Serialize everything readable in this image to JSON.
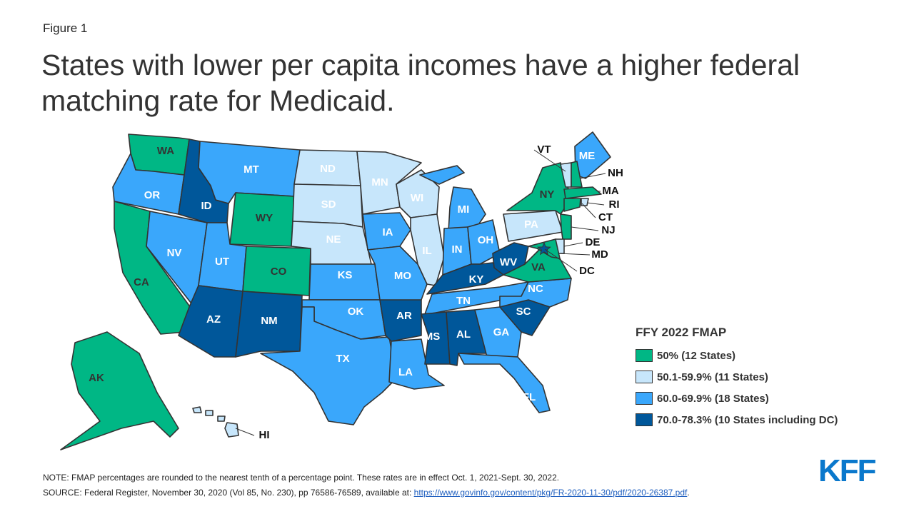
{
  "figure_label": "Figure 1",
  "title": "States with lower per capita incomes have a higher federal matching rate for Medicaid.",
  "legend": {
    "title": "FFY 2022 FMAP",
    "items": [
      {
        "key": "c1",
        "label": "50% (12 States)",
        "color": "#00b785"
      },
      {
        "key": "c2",
        "label": "50.1-59.9% (11 States)",
        "color": "#c7e6fb"
      },
      {
        "key": "c3",
        "label": "60.0-69.9% (18 States)",
        "color": "#3aa7fb"
      },
      {
        "key": "c4",
        "label": "70.0-78.3% (10 States including DC)",
        "color": "#00579a"
      }
    ]
  },
  "states": [
    {
      "abbr": "WA",
      "cat": "c1"
    },
    {
      "abbr": "OR",
      "cat": "c3"
    },
    {
      "abbr": "CA",
      "cat": "c1"
    },
    {
      "abbr": "NV",
      "cat": "c3"
    },
    {
      "abbr": "ID",
      "cat": "c4"
    },
    {
      "abbr": "MT",
      "cat": "c3"
    },
    {
      "abbr": "WY",
      "cat": "c1"
    },
    {
      "abbr": "UT",
      "cat": "c3"
    },
    {
      "abbr": "CO",
      "cat": "c1"
    },
    {
      "abbr": "AZ",
      "cat": "c4"
    },
    {
      "abbr": "NM",
      "cat": "c4"
    },
    {
      "abbr": "ND",
      "cat": "c2"
    },
    {
      "abbr": "SD",
      "cat": "c2"
    },
    {
      "abbr": "NE",
      "cat": "c2"
    },
    {
      "abbr": "KS",
      "cat": "c3"
    },
    {
      "abbr": "OK",
      "cat": "c3"
    },
    {
      "abbr": "TX",
      "cat": "c3"
    },
    {
      "abbr": "MN",
      "cat": "c2"
    },
    {
      "abbr": "IA",
      "cat": "c3"
    },
    {
      "abbr": "MO",
      "cat": "c3"
    },
    {
      "abbr": "AR",
      "cat": "c4"
    },
    {
      "abbr": "LA",
      "cat": "c3"
    },
    {
      "abbr": "WI",
      "cat": "c2"
    },
    {
      "abbr": "IL",
      "cat": "c2"
    },
    {
      "abbr": "MI",
      "cat": "c3"
    },
    {
      "abbr": "IN",
      "cat": "c3"
    },
    {
      "abbr": "OH",
      "cat": "c3"
    },
    {
      "abbr": "KY",
      "cat": "c4"
    },
    {
      "abbr": "TN",
      "cat": "c3"
    },
    {
      "abbr": "MS",
      "cat": "c4"
    },
    {
      "abbr": "AL",
      "cat": "c4"
    },
    {
      "abbr": "GA",
      "cat": "c3"
    },
    {
      "abbr": "FL",
      "cat": "c3"
    },
    {
      "abbr": "SC",
      "cat": "c4"
    },
    {
      "abbr": "NC",
      "cat": "c3"
    },
    {
      "abbr": "VA",
      "cat": "c1"
    },
    {
      "abbr": "WV",
      "cat": "c4"
    },
    {
      "abbr": "PA",
      "cat": "c2"
    },
    {
      "abbr": "NY",
      "cat": "c1"
    },
    {
      "abbr": "ME",
      "cat": "c3"
    },
    {
      "abbr": "VT",
      "cat": "c2"
    },
    {
      "abbr": "NH",
      "cat": "c1"
    },
    {
      "abbr": "MA",
      "cat": "c1"
    },
    {
      "abbr": "CT",
      "cat": "c1"
    },
    {
      "abbr": "RI",
      "cat": "c2"
    },
    {
      "abbr": "NJ",
      "cat": "c1"
    },
    {
      "abbr": "DE",
      "cat": "c2"
    },
    {
      "abbr": "MD",
      "cat": "c1"
    },
    {
      "abbr": "DC",
      "cat": "c4"
    },
    {
      "abbr": "AK",
      "cat": "c1"
    },
    {
      "abbr": "HI",
      "cat": "c2"
    }
  ],
  "notes": {
    "note": "NOTE: FMAP percentages are rounded to the nearest tenth of a percentage point. These rates are in effect Oct. 1, 2021-Sept. 30, 2022.",
    "source_prefix": "SOURCE: Federal Register, November 30, 2020 (Vol 85, No. 230), pp 76586-76589, available at: ",
    "source_link": "https://www.govinfo.gov/content/pkg/FR-2020-11-30/pdf/2020-26387.pdf",
    "source_suffix": "."
  },
  "logo": "KFF"
}
